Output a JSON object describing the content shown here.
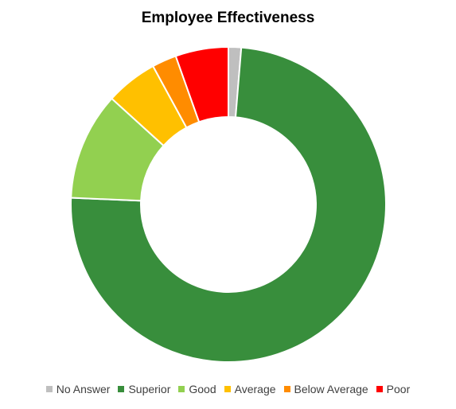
{
  "chart_data": {
    "type": "pie",
    "variant": "donut",
    "title": "Employee Effectiveness",
    "categories": [
      "No Answer",
      "Superior",
      "Good",
      "Average",
      "Below Average",
      "Poor"
    ],
    "values": [
      1.3,
      74,
      11,
      5.3,
      2.5,
      5.4
    ],
    "unit": "percent of total (estimated)",
    "colors": [
      "#bfbfbf",
      "#388e3c",
      "#92d050",
      "#ffc000",
      "#ff8c00",
      "#ff0000"
    ],
    "start_angle": "12 o'clock",
    "direction": "clockwise",
    "legend_position": "bottom"
  }
}
